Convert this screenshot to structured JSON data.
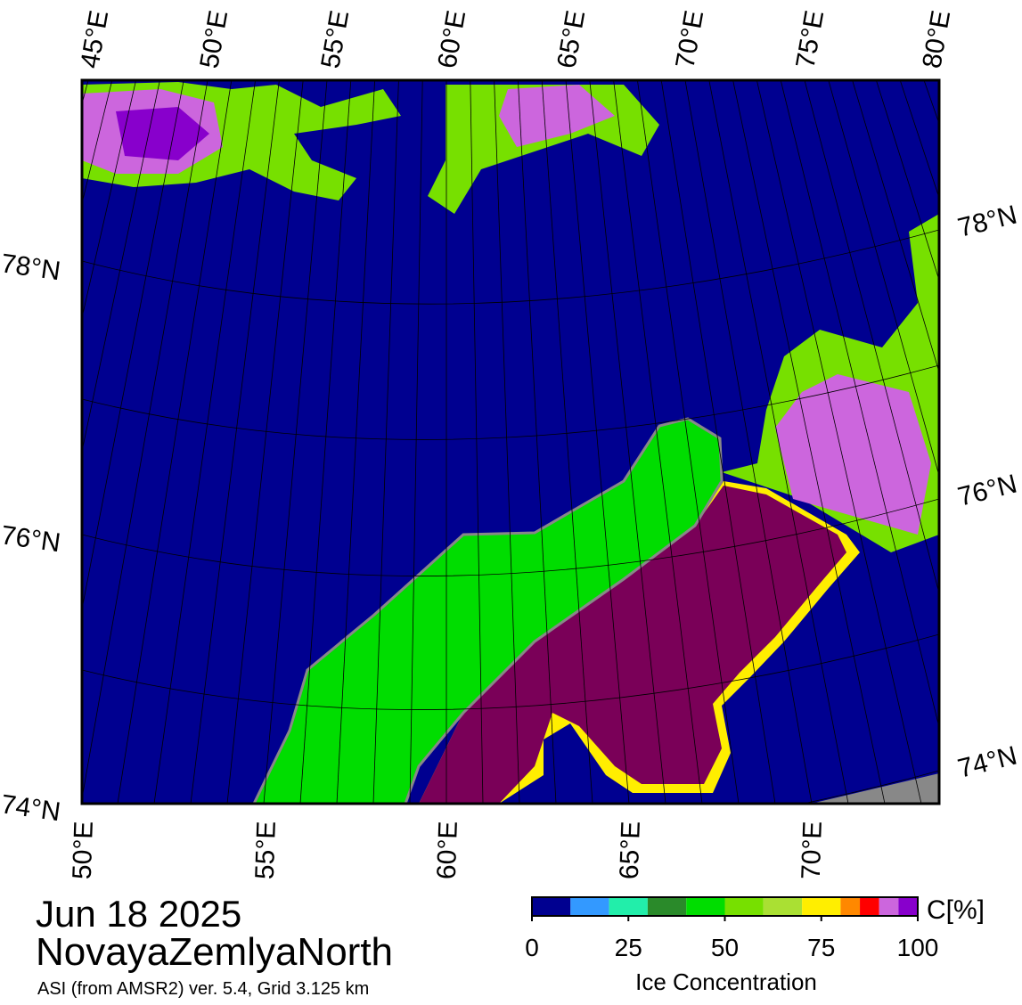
{
  "map": {
    "date": "Jun 18 2025",
    "region": "NovayaZemlyaNorth",
    "subtitle": "ASI (from AMSR2) ver. 5.4,  Grid 3.125 km",
    "top_lon_labels": [
      "45°E",
      "50°E",
      "55°E",
      "60°E",
      "65°E",
      "70°E",
      "75°E",
      "80°E"
    ],
    "bottom_lon_labels": [
      "50°E",
      "55°E",
      "60°E",
      "65°E",
      "70°E"
    ],
    "left_lat_labels": [
      "78°N",
      "76°N",
      "74°N"
    ],
    "right_lat_labels": [
      "78°N",
      "76°N",
      "74°N"
    ]
  },
  "colorbar": {
    "unit_label": "C[%]",
    "title": "Ice Concentration",
    "bounds": [
      0,
      10,
      20,
      30,
      40,
      50,
      60,
      70,
      80,
      85,
      90,
      95,
      100
    ],
    "colors": [
      "#000090",
      "#3399ff",
      "#22eeaa",
      "#2a8a2a",
      "#00dd00",
      "#77e000",
      "#aae033",
      "#ffee00",
      "#ff8800",
      "#ff0000",
      "#cc66dd",
      "#8800cc"
    ],
    "lim": [
      0,
      100
    ],
    "ticks": [
      0,
      25,
      50,
      75,
      100
    ]
  }
}
